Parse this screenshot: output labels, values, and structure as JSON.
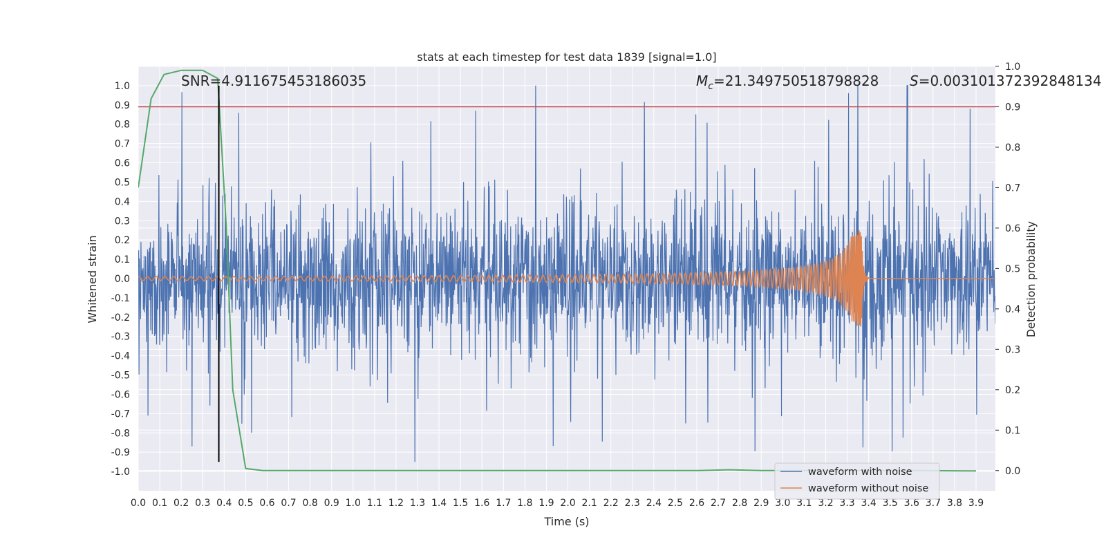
{
  "chart_data": {
    "type": "line",
    "title": "stats at each timestep for test data 1839 [signal=1.0]",
    "xlabel": "Time (s)",
    "ylabel": "Whitened strain",
    "ylabel_right": "Detection probability",
    "xlim": [
      0.0,
      3.99
    ],
    "ylim": [
      -1.1,
      1.1
    ],
    "ylim_right": [
      -0.05,
      1.0
    ],
    "x_ticks": [
      "0.0",
      "0.1",
      "0.2",
      "0.3",
      "0.4",
      "0.5",
      "0.6",
      "0.7",
      "0.8",
      "0.9",
      "1.0",
      "1.1",
      "1.2",
      "1.3",
      "1.4",
      "1.5",
      "1.6",
      "1.7",
      "1.8",
      "1.9",
      "2.0",
      "2.1",
      "2.2",
      "2.3",
      "2.4",
      "2.5",
      "2.6",
      "2.7",
      "2.8",
      "2.9",
      "3.0",
      "3.1",
      "3.2",
      "3.3",
      "3.4",
      "3.5",
      "3.6",
      "3.7",
      "3.8",
      "3.9"
    ],
    "y_ticks": [
      "1.0",
      "0.9",
      "0.8",
      "0.7",
      "0.6",
      "0.5",
      "0.4",
      "0.3",
      "0.2",
      "0.1",
      "0.0",
      "-0.1",
      "-0.2",
      "-0.3",
      "-0.4",
      "-0.5",
      "-0.6",
      "-0.7",
      "-0.8",
      "-0.9",
      "-1.0"
    ],
    "y_ticks_right": [
      "1.0",
      "0.9",
      "0.8",
      "0.7",
      "0.6",
      "0.5",
      "0.4",
      "0.3",
      "0.2",
      "0.1",
      "0.0"
    ],
    "grid": true,
    "legend_position": "lower right",
    "colors": {
      "background": "#eaeaf2",
      "grid": "#ffffff",
      "noise": "#4c72b0",
      "clean": "#dd8452",
      "probability": "#55a868",
      "threshold": "#c44e52",
      "marker": "#000000"
    },
    "series": [
      {
        "name": "waveform with noise",
        "axis": "left",
        "style": "dense noisy strain, amplitude mostly within -0.6 to 0.6, peak 1.0 at t=3.58"
      },
      {
        "name": "waveform without noise",
        "axis": "left",
        "chirp_start": 0.0,
        "chirp_merger": 3.37,
        "start_amplitude": 0.01,
        "peak_amplitude": 0.25
      },
      {
        "axis": "right",
        "x": [
          0.0,
          0.06,
          0.12,
          0.2,
          0.3,
          0.37,
          0.41,
          0.44,
          0.5,
          0.58,
          1.0,
          2.0,
          2.6,
          2.75,
          2.9,
          3.6,
          3.9
        ],
        "values": [
          0.7,
          0.92,
          0.98,
          0.99,
          0.99,
          0.97,
          0.6,
          0.2,
          0.005,
          0.0,
          0.0,
          0.0,
          0.0,
          0.002,
          0.0,
          0.0,
          -0.001
        ]
      }
    ],
    "threshold_right": 0.9,
    "marker_x": 0.375,
    "marker_y_range": [
      -0.95,
      1.0
    ],
    "annotations": {
      "snr": "SNR=4.911675453186035",
      "mc_symbol": "M",
      "mc_sub": "c",
      "mc_value": "=21.349750518798828",
      "s_symbol": "S",
      "s_value": "=0.003101372392848134"
    }
  }
}
